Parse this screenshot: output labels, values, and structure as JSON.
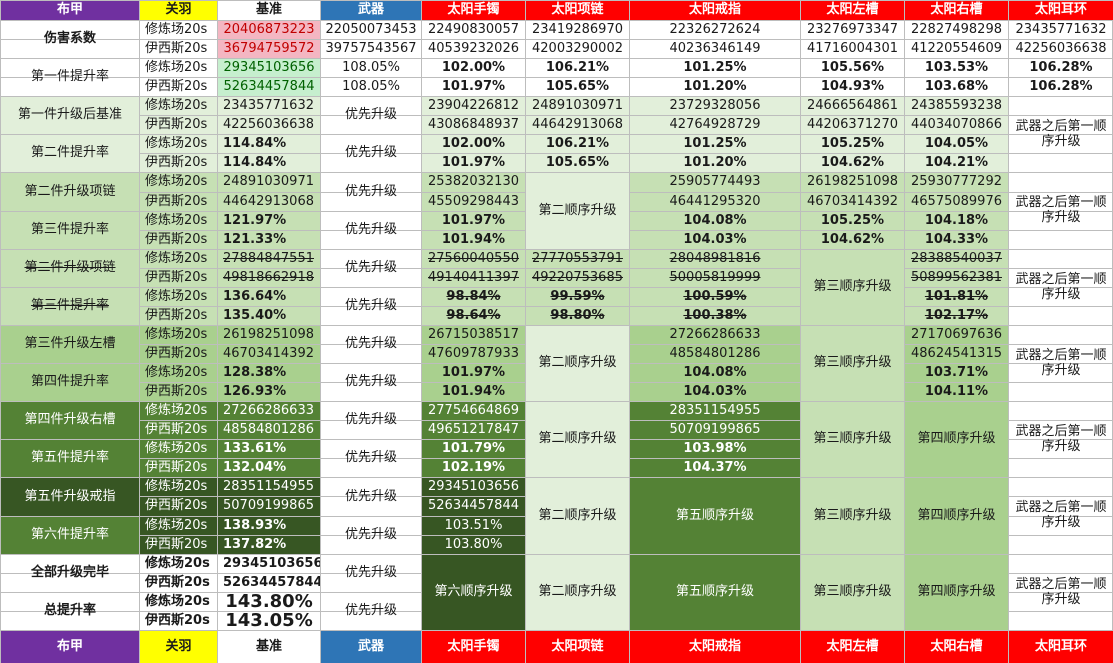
{
  "colors": {
    "purple": "#7030a0",
    "yellow": "#ffff00",
    "blue": "#2e75b6",
    "red": "#ff0000",
    "pink": "#f4b6c2",
    "ltgreen": "#c6efce",
    "g1": "#e2efda",
    "g2": "#c6e0b4",
    "g3": "#a9d08e",
    "g4": "#548235",
    "g5": "#375623"
  },
  "header": [
    "布甲",
    "关羽",
    "基准",
    "武器",
    "太阳手镯",
    "太阳项链",
    "太阳戒指",
    "太阳左槽",
    "太阳右槽",
    "太阳耳环"
  ],
  "t": {
    "r1": [
      "伤害系数",
      "修炼场20s",
      "20406873223",
      "22050073453",
      "22490830057",
      "23419286970",
      "22326272624",
      "23276973347",
      "22827498298",
      "23435771632"
    ],
    "r2": [
      "伊西斯20s",
      "36794759572",
      "39757543567",
      "40539232026",
      "42003290002",
      "40236346149",
      "41716004301",
      "41220554609",
      "42256036638"
    ],
    "r3": [
      "第一件提升率",
      "修炼场20s",
      "29345103656",
      "108.05%",
      "102.00%",
      "106.21%",
      "101.25%",
      "105.56%",
      "103.53%",
      "106.28%"
    ],
    "r4": [
      "伊西斯20s",
      "52634457844",
      "108.05%",
      "101.97%",
      "105.65%",
      "101.20%",
      "104.93%",
      "103.68%",
      "106.28%"
    ],
    "r5": [
      "第一件升级后基准",
      "修炼场20s",
      "23435771632",
      "优先升级",
      "23904226812",
      "24891030971",
      "23729328056",
      "24666564861",
      "24385593238",
      "武器之后第一顺序升级"
    ],
    "r6": [
      "伊西斯20s",
      "42256036638",
      "43086848937",
      "44642913068",
      "42764928729",
      "44206371270",
      "44034070866"
    ],
    "r7": [
      "第二件提升率",
      "修炼场20s",
      "114.84%",
      "优先升级",
      "102.00%",
      "106.21%",
      "101.25%",
      "105.25%",
      "104.05%"
    ],
    "r8": [
      "伊西斯20s",
      "114.84%",
      "101.97%",
      "105.65%",
      "101.20%",
      "104.62%",
      "104.21%"
    ],
    "r9": [
      "第二件升级项链",
      "修炼场20s",
      "24891030971",
      "优先升级",
      "25382032130",
      "第二顺序升级",
      "25905774493",
      "26198251098",
      "25930777292",
      "武器之后第一顺序升级"
    ],
    "r10": [
      "伊西斯20s",
      "44642913068",
      "45509298443",
      "46441295320",
      "46703414392",
      "46575089976"
    ],
    "r11": [
      "第三件提升率",
      "修炼场20s",
      "121.97%",
      "优先升级",
      "101.97%",
      "104.08%",
      "105.25%",
      "104.18%"
    ],
    "r12": [
      "伊西斯20s",
      "121.33%",
      "101.94%",
      "104.03%",
      "104.62%",
      "104.33%"
    ],
    "r13": [
      "第二件升级项链",
      "修炼场20s",
      "27884847551",
      "优先升级",
      "27560040550",
      "27770553791",
      "28048981816",
      "第三顺序升级",
      "28388540037",
      "武器之后第一顺序升级"
    ],
    "r14": [
      "伊西斯20s",
      "49818662918",
      "49140411397",
      "49220753685",
      "50005819999",
      "50899562381"
    ],
    "r15": [
      "第三件提升率",
      "修炼场20s",
      "136.64%",
      "优先升级",
      "98.84%",
      "99.59%",
      "100.59%",
      "101.81%"
    ],
    "r16": [
      "伊西斯20s",
      "135.40%",
      "98.64%",
      "98.80%",
      "100.38%",
      "102.17%"
    ],
    "r17": [
      "第三件升级左槽",
      "修炼场20s",
      "26198251098",
      "优先升级",
      "26715038517",
      "第二顺序升级",
      "27266286633",
      "第三顺序升级",
      "27170697636",
      "武器之后第一顺序升级"
    ],
    "r18": [
      "伊西斯20s",
      "46703414392",
      "47609787933",
      "48584801286",
      "48624541315"
    ],
    "r19": [
      "第四件提升率",
      "修炼场20s",
      "128.38%",
      "优先升级",
      "101.97%",
      "104.08%",
      "103.71%"
    ],
    "r20": [
      "伊西斯20s",
      "126.93%",
      "101.94%",
      "104.03%",
      "104.11%"
    ],
    "r21": [
      "第四件升级右槽",
      "修炼场20s",
      "27266286633",
      "优先升级",
      "27754664869",
      "第二顺序升级",
      "28351154955",
      "第三顺序升级",
      "第四顺序升级",
      "武器之后第一顺序升级"
    ],
    "r22": [
      "伊西斯20s",
      "48584801286",
      "49651217847",
      "50709199865"
    ],
    "r23": [
      "第五件提升率",
      "修炼场20s",
      "133.61%",
      "优先升级",
      "101.79%",
      "103.98%"
    ],
    "r24": [
      "伊西斯20s",
      "132.04%",
      "102.19%",
      "104.37%"
    ],
    "r25": [
      "第五件升级戒指",
      "修炼场20s",
      "28351154955",
      "优先升级",
      "29345103656",
      "第二顺序升级",
      "第五顺序升级",
      "第三顺序升级",
      "第四顺序升级",
      "武器之后第一顺序升级"
    ],
    "r26": [
      "伊西斯20s",
      "50709199865",
      "52634457844"
    ],
    "r27": [
      "第六件提升率",
      "修炼场20s",
      "138.93%",
      "优先升级",
      "103.51%"
    ],
    "r28": [
      "伊西斯20s",
      "137.82%",
      "103.80%"
    ],
    "r29": [
      "全部升级完毕",
      "修炼场20s",
      "29345103656",
      "优先升级",
      "第六顺序升级",
      "第二顺序升级",
      "第五顺序升级",
      "第三顺序升级",
      "第四顺序升级",
      "武器之后第一顺序升级"
    ],
    "r30": [
      "伊西斯20s",
      "52634457844"
    ],
    "r31": [
      "总提升率",
      "修炼场20s",
      "143.80%"
    ],
    "r32": [
      "伊西斯20s",
      "143.05%"
    ]
  }
}
